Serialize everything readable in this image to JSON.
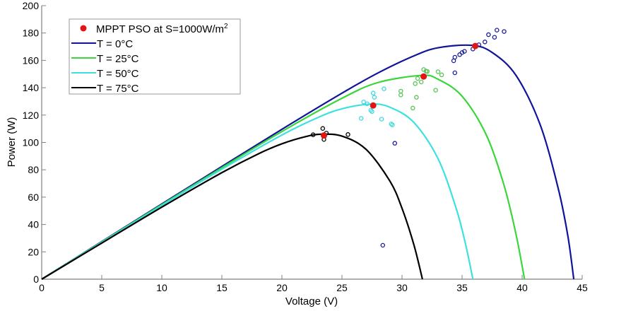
{
  "chart_data": {
    "type": "line",
    "title": "",
    "xlabel": "Voltage (V)",
    "ylabel": "Power (W)",
    "xlim": [
      0,
      45
    ],
    "ylim": [
      0,
      200
    ],
    "xticks": [
      0,
      5,
      10,
      15,
      20,
      25,
      30,
      35,
      40,
      45
    ],
    "yticks": [
      0,
      20,
      40,
      60,
      80,
      100,
      120,
      140,
      160,
      180,
      200
    ],
    "grid": false,
    "legend_position": "top-left",
    "legend": {
      "mppt_label": "MPPT PSO at S=1000W/m",
      "mppt_label_sup": "2"
    },
    "series": [
      {
        "name": "T = 0°C",
        "color": "#10149a",
        "points": [
          [
            0,
            0
          ],
          [
            5,
            27.5
          ],
          [
            10,
            55
          ],
          [
            15,
            82.4
          ],
          [
            20,
            109.6
          ],
          [
            25,
            136
          ],
          [
            28,
            150.8
          ],
          [
            31,
            163.3
          ],
          [
            33,
            169.2
          ],
          [
            35.8,
            171
          ],
          [
            37.5,
            165.8
          ],
          [
            39.5,
            148.9
          ],
          [
            41.5,
            113
          ],
          [
            43,
            66.5
          ],
          [
            43.8,
            32
          ],
          [
            44.3,
            0
          ]
        ],
        "scatter_color": "#1c1c9c",
        "scatter": [
          [
            34.3,
            159.7
          ],
          [
            34.4,
            162.3
          ],
          [
            34.8,
            164.2
          ],
          [
            35.0,
            165.7
          ],
          [
            35.2,
            166.6
          ],
          [
            35.9,
            168.3
          ],
          [
            36.4,
            171.4
          ],
          [
            36.9,
            173.5
          ],
          [
            37.2,
            178.8
          ],
          [
            37.7,
            176.9
          ],
          [
            37.9,
            182.1
          ],
          [
            38.5,
            181.1
          ],
          [
            34.4,
            150.9
          ],
          [
            29.4,
            99.4
          ],
          [
            28.4,
            24.8
          ]
        ]
      },
      {
        "name": "T = 25°C",
        "color": "#3ad63a",
        "points": [
          [
            0,
            0
          ],
          [
            5,
            27.2
          ],
          [
            10,
            54.5
          ],
          [
            15,
            81.5
          ],
          [
            20,
            108
          ],
          [
            25,
            132.3
          ],
          [
            28,
            143.8
          ],
          [
            31.6,
            149
          ],
          [
            33,
            146.2
          ],
          [
            35,
            133.8
          ],
          [
            37,
            105.8
          ],
          [
            38.5,
            68.5
          ],
          [
            39.5,
            32.4
          ],
          [
            40.2,
            0
          ]
        ],
        "scatter_color": "#55c655",
        "scatter": [
          [
            31.8,
            153.3
          ],
          [
            32.0,
            152.1
          ],
          [
            32.1,
            151.9
          ],
          [
            33.0,
            151.7
          ],
          [
            33.3,
            149.4
          ],
          [
            31.3,
            146.8
          ],
          [
            31.1,
            143.0
          ],
          [
            31.6,
            144.2
          ],
          [
            29.9,
            137.5
          ],
          [
            29.9,
            134.7
          ],
          [
            31.2,
            133.0
          ],
          [
            32.8,
            138.2
          ],
          [
            30.9,
            125.1
          ]
        ]
      },
      {
        "name": "T = 50°C",
        "color": "#3ee0e0",
        "points": [
          [
            0,
            0
          ],
          [
            5,
            27
          ],
          [
            10,
            53.9
          ],
          [
            15,
            80.4
          ],
          [
            20,
            105.4
          ],
          [
            23,
            118.2
          ],
          [
            25,
            124.6
          ],
          [
            27.4,
            128
          ],
          [
            29,
            125.7
          ],
          [
            31,
            114.5
          ],
          [
            33,
            88.1
          ],
          [
            34.5,
            52
          ],
          [
            35.3,
            25.2
          ],
          [
            35.9,
            0
          ]
        ],
        "scatter_color": "#3fd8e0",
        "scatter": [
          [
            27.6,
            136.1
          ],
          [
            27.7,
            133.0
          ],
          [
            26.8,
            129.6
          ],
          [
            27.1,
            128.3
          ],
          [
            28.5,
            139.2
          ],
          [
            27.5,
            122.6
          ],
          [
            27.4,
            123.5
          ],
          [
            26.6,
            117.6
          ],
          [
            28.3,
            117.0
          ],
          [
            29.1,
            113.5
          ],
          [
            29.2,
            112.8
          ]
        ]
      },
      {
        "name": "T = 75°C",
        "color": "#000000",
        "points": [
          [
            0,
            0
          ],
          [
            5,
            26.4
          ],
          [
            10,
            52.7
          ],
          [
            15,
            77.9
          ],
          [
            18,
            91.5
          ],
          [
            20,
            99
          ],
          [
            22,
            104.3
          ],
          [
            23.3,
            106
          ],
          [
            25,
            104.6
          ],
          [
            27,
            95
          ],
          [
            29,
            71.6
          ],
          [
            30,
            51.8
          ],
          [
            31,
            24.8
          ],
          [
            31.7,
            0
          ]
        ],
        "scatter_color": "#000000",
        "scatter": [
          [
            22.6,
            105.6
          ],
          [
            23.4,
            110.2
          ],
          [
            23.7,
            106.8
          ],
          [
            23.5,
            102.2
          ],
          [
            25.5,
            105.8
          ]
        ]
      }
    ],
    "mppt_color": "#e01515",
    "mppt_points": [
      [
        36.1,
        170.5
      ],
      [
        31.8,
        148.2
      ],
      [
        27.6,
        127.0
      ],
      [
        23.5,
        105.1
      ]
    ]
  }
}
